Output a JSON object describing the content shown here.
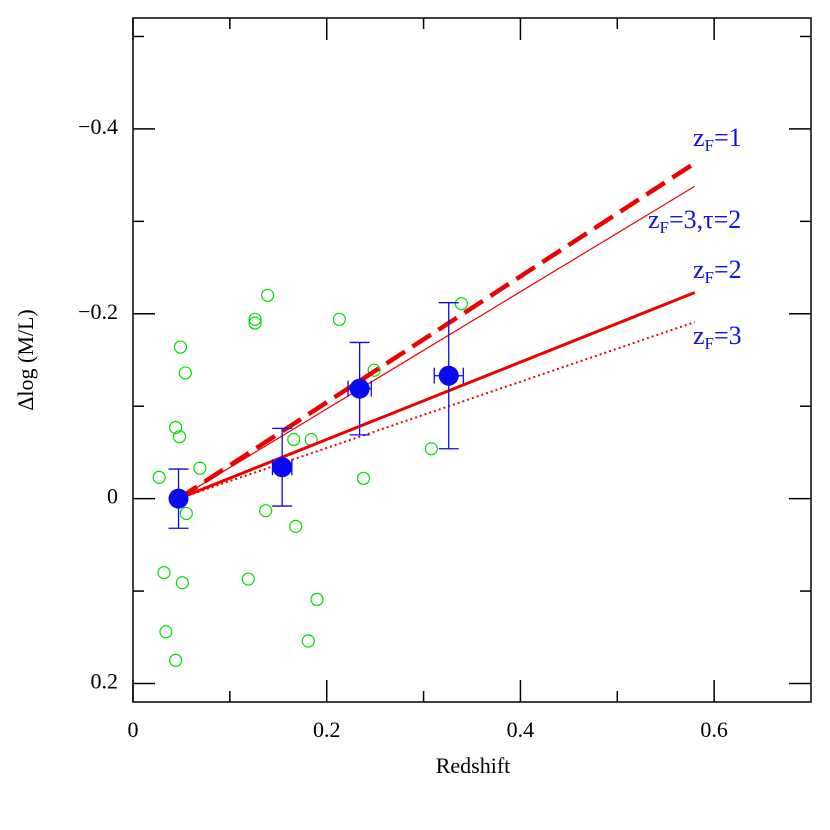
{
  "chart_data": {
    "type": "scatter",
    "xlabel": "Redshift",
    "ylabel": "Δlog (M/L)",
    "xlim": [
      0,
      0.7
    ],
    "ylim": [
      0.22,
      -0.52
    ],
    "xticks": [
      0,
      0.2,
      0.4,
      0.6
    ],
    "xminor": [
      0.1,
      0.3,
      0.5
    ],
    "yticks": [
      {
        "value": -0.4,
        "label": "−0.4"
      },
      {
        "value": -0.2,
        "label": "−0.2"
      },
      0,
      0.2
    ],
    "yminor": [
      -0.5,
      -0.3,
      -0.1,
      0.1
    ],
    "points": {
      "color": "#00dd00",
      "x": [
        0.027,
        0.032,
        0.034,
        0.044,
        0.044,
        0.048,
        0.049,
        0.051,
        0.054,
        0.055,
        0.069,
        0.119,
        0.126,
        0.126,
        0.137,
        0.139,
        0.166,
        0.168,
        0.181,
        0.184,
        0.19,
        0.213,
        0.238,
        0.249,
        0.308,
        0.339
      ],
      "y": [
        -0.023,
        0.08,
        0.144,
        0.175,
        -0.077,
        -0.067,
        -0.164,
        0.091,
        -0.136,
        0.016,
        -0.033,
        0.087,
        -0.19,
        -0.194,
        0.013,
        -0.22,
        -0.064,
        0.03,
        0.154,
        -0.064,
        0.109,
        -0.194,
        -0.022,
        -0.139,
        -0.054,
        -0.211
      ]
    },
    "binned": {
      "color": "#0a0aee",
      "x": [
        0.047,
        0.154,
        0.234,
        0.326
      ],
      "y": [
        0,
        -0.034,
        -0.119,
        -0.133
      ],
      "xerr": [
        null,
        0.01,
        0.012,
        0.015
      ],
      "yerr": [
        0.032,
        0.042,
        0.05,
        0.079
      ]
    },
    "models": [
      {
        "label": {
          "main": "z",
          "sub": "F",
          "rest": "=1"
        },
        "color": "#ee0000",
        "style": "dashed-thick",
        "x": [
          0.047,
          0.58
        ],
        "y": [
          0,
          -0.363
        ]
      },
      {
        "label": {
          "main": "z",
          "sub": "F",
          "rest": "=3,τ=2"
        },
        "color": "#ee0000",
        "style": "thin",
        "x": [
          0.047,
          0.58
        ],
        "y": [
          0,
          -0.338
        ]
      },
      {
        "label": {
          "main": "z",
          "sub": "F",
          "rest": "=2"
        },
        "color": "#ee0000",
        "style": "thick",
        "x": [
          0.047,
          0.58
        ],
        "y": [
          0,
          -0.223
        ]
      },
      {
        "label": {
          "main": "z",
          "sub": "F",
          "rest": "=3"
        },
        "color": "#ee0000",
        "style": "dotted",
        "x": [
          0.047,
          0.58
        ],
        "y": [
          0,
          -0.191
        ]
      }
    ]
  }
}
